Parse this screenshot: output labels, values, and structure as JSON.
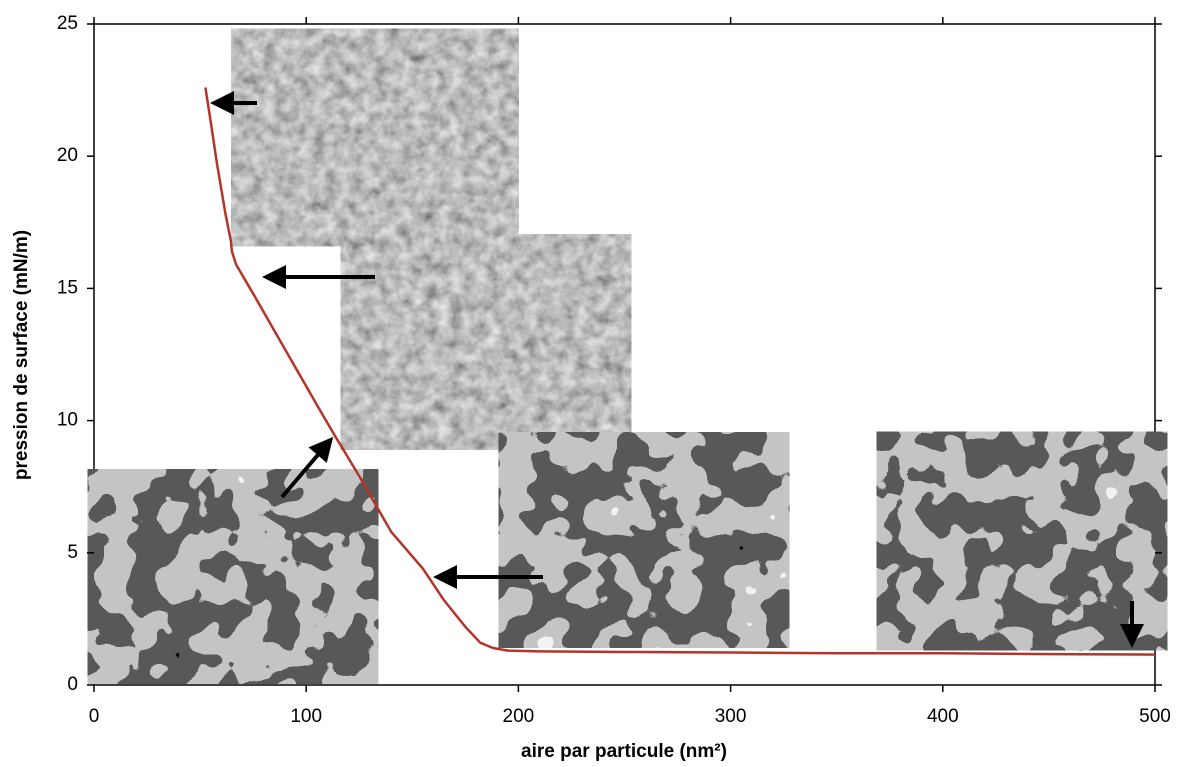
{
  "chart_data": {
    "type": "line",
    "x_label": "aire par particule (nm²)",
    "y_label": "pression de surface (mN/m)",
    "xlim": [
      0,
      500
    ],
    "xticks": [
      0,
      100,
      200,
      300,
      400,
      500
    ],
    "ylim": [
      0,
      25
    ],
    "yticks": [
      0,
      5,
      10,
      15,
      20,
      25
    ],
    "series": [
      {
        "color": "#b5342a",
        "x": [
          52.5,
          55,
          58,
          62,
          64.5,
          65,
          67,
          75,
          85,
          95,
          105,
          113,
          125,
          140,
          155,
          165,
          175,
          182,
          188,
          195,
          210,
          250,
          300,
          350,
          400,
          450,
          500
        ],
        "values": [
          22.6,
          21.3,
          19.7,
          17.8,
          16.8,
          16.4,
          15.9,
          14.8,
          13.4,
          12.0,
          10.6,
          9.5,
          7.9,
          5.8,
          4.4,
          3.2,
          2.2,
          1.6,
          1.4,
          1.3,
          1.27,
          1.25,
          1.23,
          1.2,
          1.2,
          1.17,
          1.15
        ]
      }
    ]
  }
}
